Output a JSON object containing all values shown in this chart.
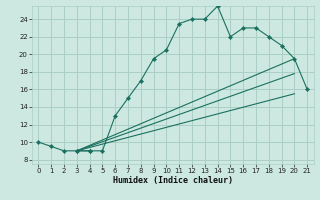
{
  "xlabel": "Humidex (Indice chaleur)",
  "background_color": "#cde8e0",
  "grid_color": "#aacfc5",
  "line_color": "#1a7060",
  "xlim": [
    -0.5,
    21.5
  ],
  "ylim": [
    7.5,
    25.5
  ],
  "xticks": [
    0,
    1,
    2,
    3,
    4,
    5,
    6,
    7,
    8,
    9,
    10,
    11,
    12,
    13,
    14,
    15,
    16,
    17,
    18,
    19,
    20,
    21
  ],
  "yticks": [
    8,
    10,
    12,
    14,
    16,
    18,
    20,
    22,
    24
  ],
  "lines": [
    {
      "x": [
        0,
        1,
        2,
        3,
        4
      ],
      "y": [
        10,
        9.5,
        9,
        9,
        9
      ],
      "markers": true
    },
    {
      "x": [
        3,
        4,
        5,
        6,
        7,
        8,
        9,
        10,
        11,
        12,
        13,
        14,
        15,
        16,
        17,
        18,
        19,
        20,
        21
      ],
      "y": [
        9,
        9,
        9,
        13,
        15,
        17,
        19.5,
        20.5,
        23.5,
        24,
        24,
        25.5,
        22,
        23,
        23,
        22,
        21,
        19.5,
        16
      ],
      "markers": true
    },
    {
      "x": [
        3,
        20
      ],
      "y": [
        9,
        19.5
      ],
      "markers": false
    },
    {
      "x": [
        3,
        20
      ],
      "y": [
        9,
        17.8
      ],
      "markers": false
    },
    {
      "x": [
        3,
        20
      ],
      "y": [
        9,
        15.5
      ],
      "markers": false
    }
  ]
}
